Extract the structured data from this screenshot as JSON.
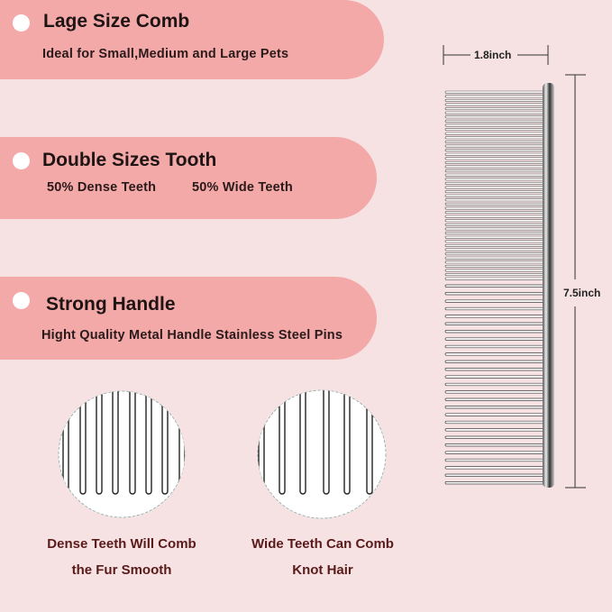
{
  "features": [
    {
      "title": "Lage Size Comb",
      "subtitle": "Ideal for Small,Medium and Large Pets"
    },
    {
      "title": "Double Sizes Tooth",
      "subtitle_left": "50% Dense Teeth",
      "subtitle_right": "50% Wide Teeth"
    },
    {
      "title": "Strong Handle",
      "subtitle": "Hight Quality Metal Handle Stainless Steel Pins"
    }
  ],
  "dimensions": {
    "width": "1.8inch",
    "length": "7.5inch"
  },
  "closeups": [
    {
      "line1": "Dense Teeth Will Comb",
      "line2": "the Fur Smooth"
    },
    {
      "line1": "Wide Teeth Can Comb",
      "line2": "Knot Hair"
    }
  ],
  "colors": {
    "background": "#f6e2e3",
    "banner": "#f4a9a9",
    "caption": "#5a1a1a"
  }
}
